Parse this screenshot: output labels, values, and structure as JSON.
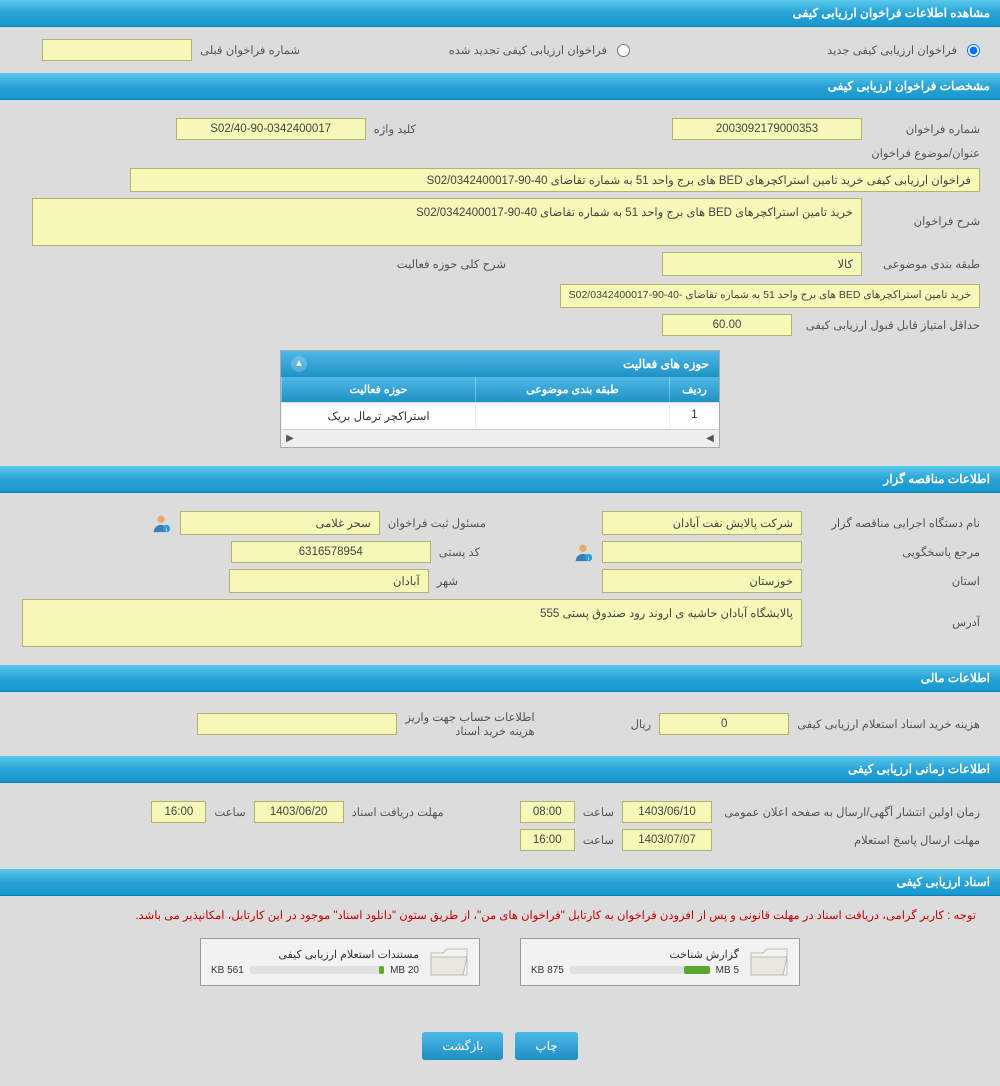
{
  "colors": {
    "header_bg": "#2aa3d6",
    "field_bg": "#f6f8b8",
    "field_border": "#b3b36e",
    "body_bg": "#dcdcdc",
    "btn_bg": "#208ec2",
    "notice": "#c70000",
    "progress_fill": "#5aa72b"
  },
  "sections": {
    "view_info": "مشاهده اطلاعات فراخوان ارزیابی کیفی",
    "call_spec": "مشخصات فراخوان ارزیابی کیفی",
    "tender_info": "اطلاعات مناقصه گزار",
    "financial": "اطلاعات مالی",
    "timing": "اطلاعات زمانی ارزیابی کیفی",
    "docs": "اسناد ارزیابی کیفی"
  },
  "top": {
    "new_call_label": "فراخوان ارزیابی کیفی جدید",
    "renewed_call_label": "فراخوان ارزیابی کیفی تجدید شده",
    "prev_number_label": "شماره فراخوان قبلی",
    "prev_number_value": ""
  },
  "spec": {
    "call_number_label": "شماره فراخوان",
    "call_number_value": "2003092179000353",
    "keyword_label": "کلید واژه",
    "keyword_value": "S02/40-90-0342400017",
    "title_label": "عنوان/موضوع فراخوان",
    "title_value": "فراخوان ارزیابی کیفی خرید تامین استراکچرهای BED های برج واحد 51 به شماره تقاضای S02/0342400017-90-40",
    "desc_label": "شرح فراخوان",
    "desc_value": "خرید تامین استراکچرهای BED های برج واحد 51 به شماره تقاضای S02/0342400017-90-40",
    "category_label": "طبقه بندی موضوعی",
    "category_value": "کالا",
    "scope_label": "شرح کلی حوزه فعالیت",
    "scope_value": "خرید تامین استراکچرهای BED های برج واحد 51 به شماره تقاضای -S02/0342400017-90-40",
    "min_score_label": "حداقل امتیاز قابل قبول ارزیابی کیفی",
    "min_score_value": "60.00"
  },
  "activity_table": {
    "title": "حوزه های فعالیت",
    "col_idx": "ردیف",
    "col_cat": "طبقه بندی موضوعی",
    "col_scope": "حوزه فعالیت",
    "rows": [
      {
        "idx": "1",
        "cat": "",
        "scope": "استراکچر ترمال بریک"
      }
    ]
  },
  "tender": {
    "exec_label": "نام دستگاه اجرایی مناقصه گزار",
    "exec_value": "شرکت پالایش نفت آبادان",
    "registrar_label": "مسئول ثبت فراخوان",
    "registrar_value": "سحر غلامی",
    "responder_label": "مرجع پاسخگویی",
    "responder_value": "",
    "postal_label": "کد پستی",
    "postal_value": "6316578954",
    "province_label": "استان",
    "province_value": "خوزستان",
    "city_label": "شهر",
    "city_value": "آبادان",
    "address_label": "آدرس",
    "address_value": "پالایشگاه آبادان حاشیه ی اروند رود صندوق پستی 555"
  },
  "financial": {
    "cost_label": "هزینه خرید اسناد استعلام ارزیابی کیفی",
    "cost_value": "0",
    "cost_unit": "ریال",
    "account_label": "اطلاعات حساب جهت واریز هزینه خرید اسناد",
    "account_value": ""
  },
  "timing": {
    "publish_label": "زمان اولین انتشار آگهی/ارسال به صفحه اعلان عمومی",
    "publish_date": "1403/06/10",
    "publish_time": "08:00",
    "doc_deadline_label": "مهلت دریافت اسناد",
    "doc_deadline_date": "1403/06/20",
    "doc_deadline_time": "16:00",
    "response_label": "مهلت ارسال پاسخ استعلام",
    "response_date": "1403/07/07",
    "response_time": "16:00",
    "hour_label": "ساعت"
  },
  "docs": {
    "notice": "توجه : کاربر گرامی، دریافت اسناد در مهلت قانونی و پس از افزودن فراخوان به کارتابل \"فراخوان های من\"، از طریق ستون \"دانلود اسناد\" موجود در این کارتابل، امکانپذیر می باشد.",
    "files": [
      {
        "name": "گزارش شناخت",
        "size": "875 KB",
        "total": "5 MB",
        "pct": 18
      },
      {
        "name": "مستندات استعلام ارزیابی کیفی",
        "size": "561 KB",
        "total": "20 MB",
        "pct": 4
      }
    ]
  },
  "buttons": {
    "print": "چاپ",
    "back": "بازگشت"
  }
}
